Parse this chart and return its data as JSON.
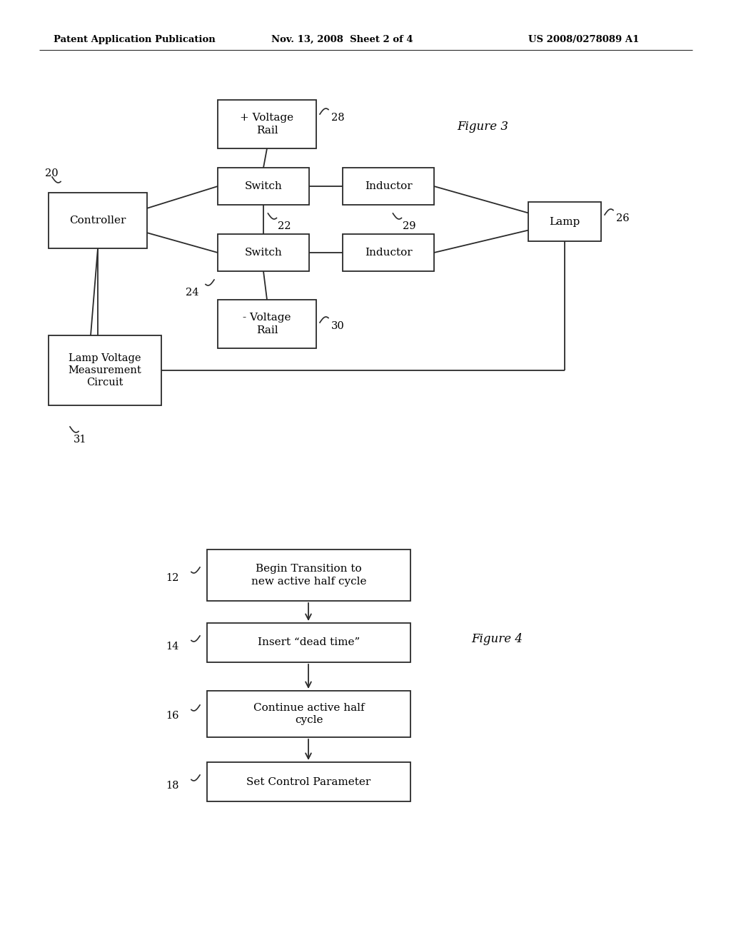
{
  "bg_color": "#ffffff",
  "header_left": "Patent Application Publication",
  "header_mid": "Nov. 13, 2008  Sheet 2 of 4",
  "header_right": "US 2008/0278089 A1",
  "fig3_label": "Figure 3",
  "fig4_label": "Figure 4"
}
